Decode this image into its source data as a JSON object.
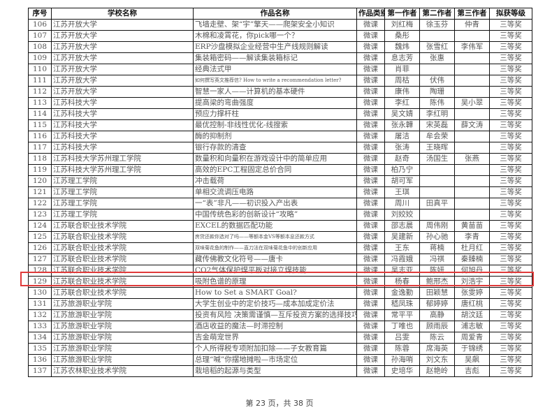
{
  "headers": [
    "序号",
    "学校名称",
    "作品名称",
    "作品类别",
    "第一作者",
    "第二作者",
    "第三作者",
    "拟获等级"
  ],
  "rows": [
    [
      "106",
      "江苏开放大学",
      "飞墙走壁、架“宇”擎天——爬架安全小知识",
      "微课",
      "刘红梅",
      "徐玉芬",
      "仲青",
      "三等奖"
    ],
    [
      "107",
      "江苏开放大学",
      "木棉和凌霄花，你pick哪一个？",
      "微课",
      "桑彤",
      "",
      "",
      "三等奖"
    ],
    [
      "108",
      "江苏开放大学",
      "ERP沙盘模拟企业经营中生产线规则解读",
      "微课",
      "魏炜",
      "张雪红",
      "李伟军",
      "三等奖"
    ],
    [
      "109",
      "江苏开放大学",
      "集装箱密码——解读集装箱标记",
      "微课",
      "息志芳",
      "张惠",
      "",
      "三等奖"
    ],
    [
      "110",
      "江苏开放大学",
      "经典法式甲",
      "微课",
      "肖菲",
      "",
      "",
      "三等奖"
    ],
    [
      "111",
      "江苏开放大学",
      "如何撰写英文推荐信? How to write a recommendation letter?",
      "微课",
      "周枯",
      "伏伟",
      "",
      "三等奖"
    ],
    [
      "112",
      "江苏开放大学",
      "智慧一家人——计算机的基本硬件",
      "微课",
      "康伟",
      "陶珊",
      "",
      "三等奖"
    ],
    [
      "113",
      "江苏科技大学",
      "提高梁的弯曲强度",
      "微课",
      "李红",
      "陈伟",
      "吴小翠",
      "三等奖"
    ],
    [
      "114",
      "江苏科技大学",
      "预应力撑杆柱",
      "微课",
      "吴文婧",
      "李红明",
      "",
      "三等奖"
    ],
    [
      "115",
      "江苏科技大学",
      "最优控制-非线性优化-线搜索",
      "微课",
      "张永韡",
      "宋英磊",
      "薛文涛",
      "三等奖"
    ],
    [
      "116",
      "江苏科技大学",
      "酶的抑制剂",
      "微课",
      "屠洁",
      "牟会荣",
      "",
      "三等奖"
    ],
    [
      "117",
      "江苏科技大学",
      "银行存款的清查",
      "微课",
      "张涛",
      "王晓晖",
      "",
      "三等奖"
    ],
    [
      "118",
      "江苏科技大学苏州理工学院",
      "数量积和向量积在游戏设计中的简单应用",
      "微课",
      "赵奇",
      "汤国生",
      "张燕",
      "三等奖"
    ],
    [
      "119",
      "江苏科技大学苏州理工学院",
      "高效的EPC工程固定总价合同",
      "微课",
      "柏乃宁",
      "",
      "",
      "三等奖"
    ],
    [
      "120",
      "江苏理工学院",
      "冲击载荷",
      "微课",
      "胡可军",
      "",
      "",
      "三等奖"
    ],
    [
      "121",
      "江苏理工学院",
      "单相交流调压电路",
      "微课",
      "王琪",
      "",
      "",
      "三等奖"
    ],
    [
      "122",
      "江苏理工学院",
      "一“表”非凡——初识投入产出表",
      "微课",
      "周川",
      "田真平",
      "",
      "三等奖"
    ],
    [
      "123",
      "江苏理工学院",
      "中国传统色彩的创新设计“攻略”",
      "微课",
      "刘姣姣",
      "",
      "",
      "三等奖"
    ],
    [
      "124",
      "江苏联合职业技术学院",
      "EXCEL的数据匹配功能",
      "微课",
      "邵志晨",
      "周伟刚",
      "黄苗苗",
      "三等奖"
    ],
    [
      "125",
      "江苏联合职业技术学院",
      "房贷还款你选对了吗——等额本金VS等额本息还款方式",
      "微课",
      "吴建新",
      "孙心驰",
      "李青",
      "三等奖"
    ],
    [
      "126",
      "江苏联合职业技术学院",
      "双味菊花鱼的制作——直刀法在双味菊花鱼中的创新应用",
      "微课",
      "王东",
      "蒋楠",
      "杜月红",
      "三等奖"
    ],
    [
      "127",
      "江苏联合职业技术学院",
      "藏传佛教文化符号——唐卡",
      "微课",
      "冯霞娥",
      "冯祺",
      "秦臻楠",
      "三等奖"
    ],
    [
      "128",
      "江苏联合职业技术学院",
      "CO2气体保护焊平板对接立焊技能",
      "微课",
      "吴志亚",
      "陈妍",
      "何旭丹",
      "三等奖"
    ],
    [
      "129",
      "江苏联合职业技术学院",
      "吸附色谱的原理",
      "微课",
      "杨春",
      "鲍邢杰",
      "刘浩宇",
      "三等奖"
    ],
    [
      "130",
      "江苏联合职业技术学院",
      "How to Set a SMART Goal?",
      "微课",
      "金逸勤",
      "田颖慧",
      "张雯婷",
      "三等奖"
    ],
    [
      "131",
      "江苏旅游职业学院",
      "大学生创业中的定价技巧—成本加成定价法",
      "微课",
      "嵇凤珠",
      "郁婷婷",
      "唐红桃",
      "三等奖"
    ],
    [
      "132",
      "江苏旅游职业学院",
      "投资有风险 决策需谨慎—互斥投资方案的选择技巧",
      "微课",
      "常平平",
      "高静",
      "胡汶廷",
      "三等奖"
    ],
    [
      "133",
      "江苏旅游职业学院",
      "酒店收益的魔法—时滞控制",
      "微课",
      "丁唯也",
      "顾雨辰",
      "浦志敏",
      "三等奖"
    ],
    [
      "134",
      "江苏旅游职业学院",
      "吉金萌宠世界",
      "微课",
      "吕雯",
      "陈云",
      "周爱青",
      "三等奖"
    ],
    [
      "135",
      "江苏旅游职业学院",
      "个人所得税专项附加扣除——子女教育篇",
      "微课",
      "陈蓉",
      "席海英",
      "于锦绣",
      "三等奖"
    ],
    [
      "136",
      "江苏旅游职业学院",
      "总理“喊”你摆地摊啦—市场定位",
      "微课",
      "孙海哨",
      "刘文东",
      "吴飙",
      "三等奖"
    ],
    [
      "137",
      "江苏农林职业技术学院",
      "栽培稻的起源与类型",
      "微课",
      "史培华",
      "赵艳岭",
      "吉彪",
      "三等奖"
    ]
  ],
  "highlighted_row": "128",
  "highlight_color": "#e03a3a",
  "footer": "第 23 页，共 38 页"
}
